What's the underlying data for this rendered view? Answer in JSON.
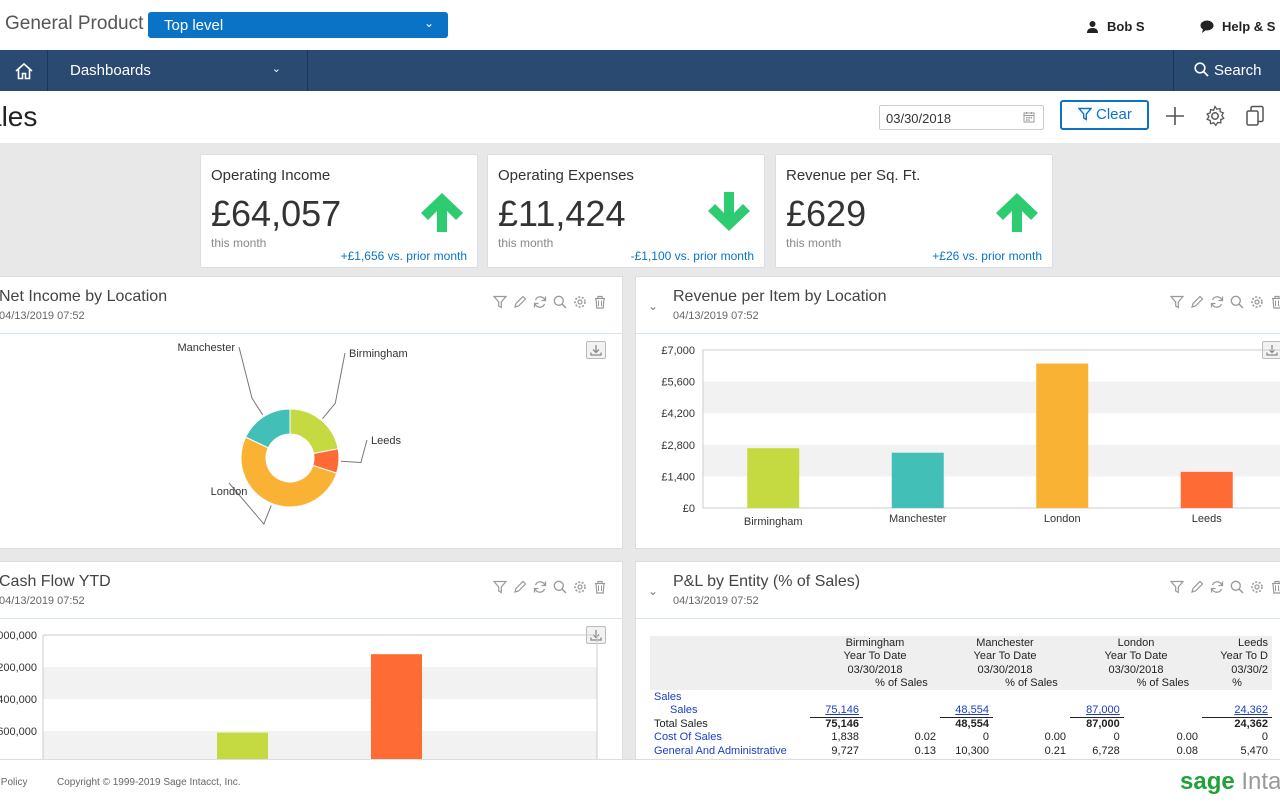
{
  "topbar": {
    "app_title": "General Product",
    "entity_select": "Top level",
    "user": "Bob S",
    "help": "Help & S"
  },
  "nav": {
    "dashboards": "Dashboards",
    "search": "Search"
  },
  "page": {
    "title": "ales",
    "date": "03/30/2018",
    "clear": "Clear"
  },
  "kpis": [
    {
      "title": "Operating Income",
      "value": "£64,057",
      "period": "this month",
      "compare": "+£1,656 vs. prior month",
      "direction": "up",
      "color": "#2ecc71"
    },
    {
      "title": "Operating Expenses",
      "value": "£11,424",
      "period": "this month",
      "compare": "-£1,100 vs. prior month",
      "direction": "down",
      "color": "#2ecc71"
    },
    {
      "title": "Revenue per Sq. Ft.",
      "value": "£629",
      "period": "this month",
      "compare": "+£26 vs. prior month",
      "direction": "up",
      "color": "#2ecc71"
    }
  ],
  "panels": {
    "net_income": {
      "title": "Net Income by Location",
      "time": "04/13/2019 07:52"
    },
    "revenue_item": {
      "title": "Revenue per Item by Location",
      "time": "04/13/2019 07:52"
    },
    "cash_flow": {
      "title": "Cash Flow YTD",
      "time": "04/13/2019 07:52"
    },
    "pl_entity": {
      "title": "P&L by Entity (% of Sales)",
      "time": "04/13/2019 07:52"
    }
  },
  "chart_data": [
    {
      "type": "pie",
      "categories": [
        "Birmingham",
        "Leeds",
        "London",
        "Manchester"
      ],
      "values": [
        22,
        8,
        52,
        18
      ],
      "colors": [
        "#c5d940",
        "#ff6b35",
        "#f9b233",
        "#42c0b8"
      ]
    },
    {
      "type": "bar",
      "categories": [
        "Birmingham",
        "Manchester",
        "London",
        "Leeds"
      ],
      "values": [
        2650,
        2450,
        6400,
        1600
      ],
      "colors": [
        "#c5d940",
        "#42c0b8",
        "#f9b233",
        "#ff6b35"
      ],
      "yticks": [
        "£0",
        "£1,400",
        "£2,800",
        "£4,200",
        "£5,600",
        "£7,000"
      ],
      "ylim": [
        0,
        7000
      ]
    },
    {
      "type": "bar",
      "categories": [
        "",
        "",
        ""
      ],
      "values": [
        590000,
        10000,
        1080000
      ],
      "colors": [
        "#c5d940",
        "#f9b233",
        "#ff6b35"
      ],
      "yticks": [
        "000,000",
        "200,000",
        "400,000",
        "600,000"
      ]
    }
  ],
  "pl_table": {
    "entities": [
      {
        "name": "Birmingham",
        "ytd": "Year To Date",
        "date": "03/30/2018",
        "pct": "% of Sales"
      },
      {
        "name": "Manchester",
        "ytd": "Year To Date",
        "date": "03/30/2018",
        "pct": "% of Sales"
      },
      {
        "name": "London",
        "ytd": "Year To Date",
        "date": "03/30/2018",
        "pct": "% of Sales"
      },
      {
        "name": "Leeds",
        "ytd": "Year To D",
        "date": "03/30/2",
        "pct": "%"
      }
    ],
    "rows": [
      {
        "label": "Sales",
        "blue": true,
        "indent": false,
        "vals": [
          "",
          "",
          "",
          "",
          "",
          "",
          ""
        ]
      },
      {
        "label": "Sales",
        "blue": true,
        "indent": true,
        "vals": [
          "75,146",
          "",
          "48,554",
          "",
          "87,000",
          "",
          "24,362"
        ],
        "underline": true
      },
      {
        "label": "Total Sales",
        "blue": false,
        "indent": false,
        "bold_vals": true,
        "vals": [
          "75,146",
          "",
          "48,554",
          "",
          "87,000",
          "",
          "24,362"
        ]
      },
      {
        "label": "Cost Of Sales",
        "blue": true,
        "indent": false,
        "vals": [
          "1,838",
          "0.02",
          "0",
          "0.00",
          "0",
          "0.00",
          "0"
        ]
      },
      {
        "label": "General And Administrative",
        "blue": true,
        "indent": false,
        "vals": [
          "9,727",
          "0.13",
          "10,300",
          "0.21",
          "6,728",
          "0.08",
          "5,470"
        ]
      }
    ]
  },
  "footer": {
    "policy": "y Policy",
    "copyright": "Copyright © 1999-2019 Sage Intacct, Inc.",
    "logo_sage": "sage",
    "logo_intacct": " Intac"
  }
}
